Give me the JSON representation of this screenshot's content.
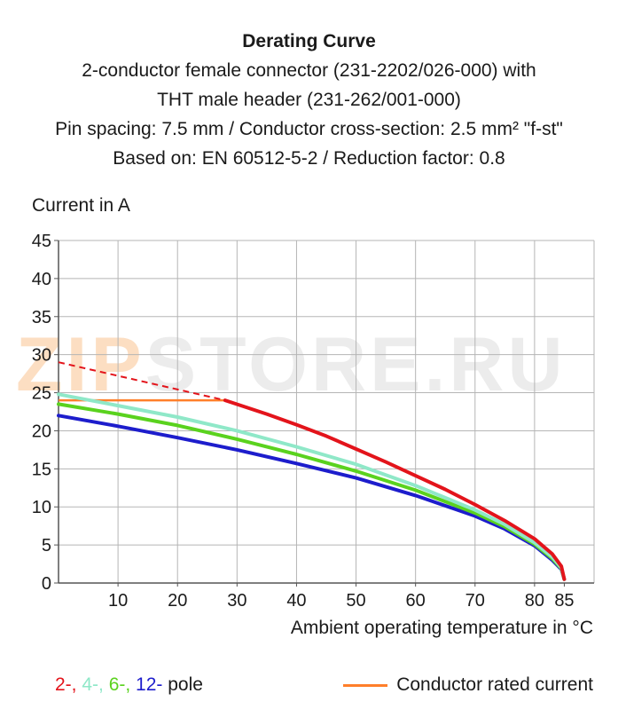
{
  "chart_data": {
    "type": "line",
    "title": "Derating Curve",
    "subtitle_lines": [
      "2-conductor female connector (231-2202/026-000) with",
      "THT male header (231-262/001-000)",
      "Pin spacing: 7.5 mm / Conductor cross-section: 2.5 mm² \"f-st\"",
      "Based on: EN 60512-5-2 / Reduction factor: 0.8"
    ],
    "ylabel": "Current in A",
    "xlabel": "Ambient operating temperature in °C",
    "xlim": [
      0,
      90
    ],
    "ylim": [
      0,
      45
    ],
    "x_ticks": [
      10,
      20,
      30,
      40,
      50,
      60,
      70,
      80,
      85
    ],
    "y_ticks": [
      0,
      5,
      10,
      15,
      20,
      25,
      30,
      35,
      40,
      45
    ],
    "grid": true,
    "series": [
      {
        "name": "2-",
        "color": "#e3141b",
        "x": [
          28,
          35,
          40,
          45,
          50,
          55,
          60,
          65,
          70,
          75,
          80,
          83,
          84.5,
          85
        ],
        "y": [
          24,
          22.2,
          20.8,
          19.3,
          17.6,
          15.9,
          14.1,
          12.3,
          10.3,
          8.2,
          5.8,
          3.8,
          2.2,
          0.5
        ],
        "dashed_x": [
          0,
          28
        ],
        "dashed_y": [
          29,
          24
        ]
      },
      {
        "name": "4-",
        "color": "#8fe8c8",
        "x": [
          0,
          10,
          20,
          30,
          40,
          50,
          60,
          70,
          75,
          80,
          83,
          84.5,
          85
        ],
        "y": [
          24.8,
          23.3,
          21.8,
          20,
          17.9,
          15.6,
          12.8,
          9.6,
          7.7,
          5.3,
          3.4,
          2,
          0.5
        ]
      },
      {
        "name": "6-",
        "color": "#5ad21e",
        "x": [
          0,
          10,
          20,
          30,
          40,
          50,
          60,
          70,
          75,
          80,
          83,
          84.5,
          85
        ],
        "y": [
          23.5,
          22.2,
          20.7,
          18.9,
          16.9,
          14.7,
          12.2,
          9.2,
          7.4,
          5.1,
          3.2,
          1.9,
          0.5
        ]
      },
      {
        "name": "12-",
        "color": "#1d1dcc",
        "x": [
          0,
          10,
          20,
          30,
          40,
          50,
          60,
          70,
          75,
          80,
          83,
          84.5,
          85
        ],
        "y": [
          22,
          20.6,
          19.1,
          17.5,
          15.7,
          13.8,
          11.5,
          8.8,
          7.1,
          4.9,
          3,
          1.8,
          0.5
        ]
      }
    ],
    "conductor_rated_current": {
      "label": "Conductor rated current",
      "color": "#ff7f2a",
      "x": [
        0,
        28
      ],
      "y": 24
    }
  },
  "legend": {
    "poles": [
      {
        "text": "2-, ",
        "color": "#e3141b"
      },
      {
        "text": "4-, ",
        "color": "#8fe8c8"
      },
      {
        "text": "6-, ",
        "color": "#5ad21e"
      },
      {
        "text": "12-",
        "color": "#1d1dcc"
      }
    ],
    "poles_suffix": " pole",
    "rated_label": "Conductor rated current"
  },
  "watermark": {
    "part1": "ZIP",
    "part2": "STORE.RU"
  }
}
